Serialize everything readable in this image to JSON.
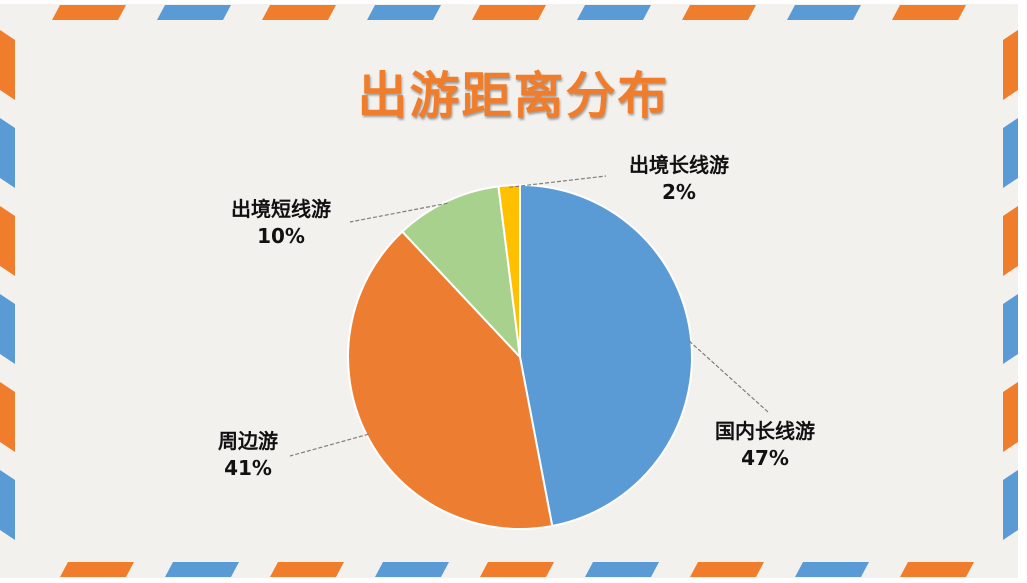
{
  "colors": {
    "background": "#F2F1EE",
    "stripe_orange": "#F07D2B",
    "stripe_blue": "#5B9BD5",
    "title": "#F07D2B"
  },
  "chart_data": {
    "type": "pie",
    "title": "出游距离分布",
    "slices": [
      {
        "label": "国内长线游",
        "value": 47,
        "display": "47%",
        "color": "#5B9BD5"
      },
      {
        "label": "周边游",
        "value": 41,
        "display": "41%",
        "color": "#ED7D31"
      },
      {
        "label": "出境短线游",
        "value": 10,
        "display": "10%",
        "color": "#A9D18E"
      },
      {
        "label": "出境长线游",
        "value": 2,
        "display": "2%",
        "color": "#FFC000"
      }
    ],
    "start": "top, clockwise",
    "legend": "none",
    "data_labels": "outside with leader lines"
  }
}
